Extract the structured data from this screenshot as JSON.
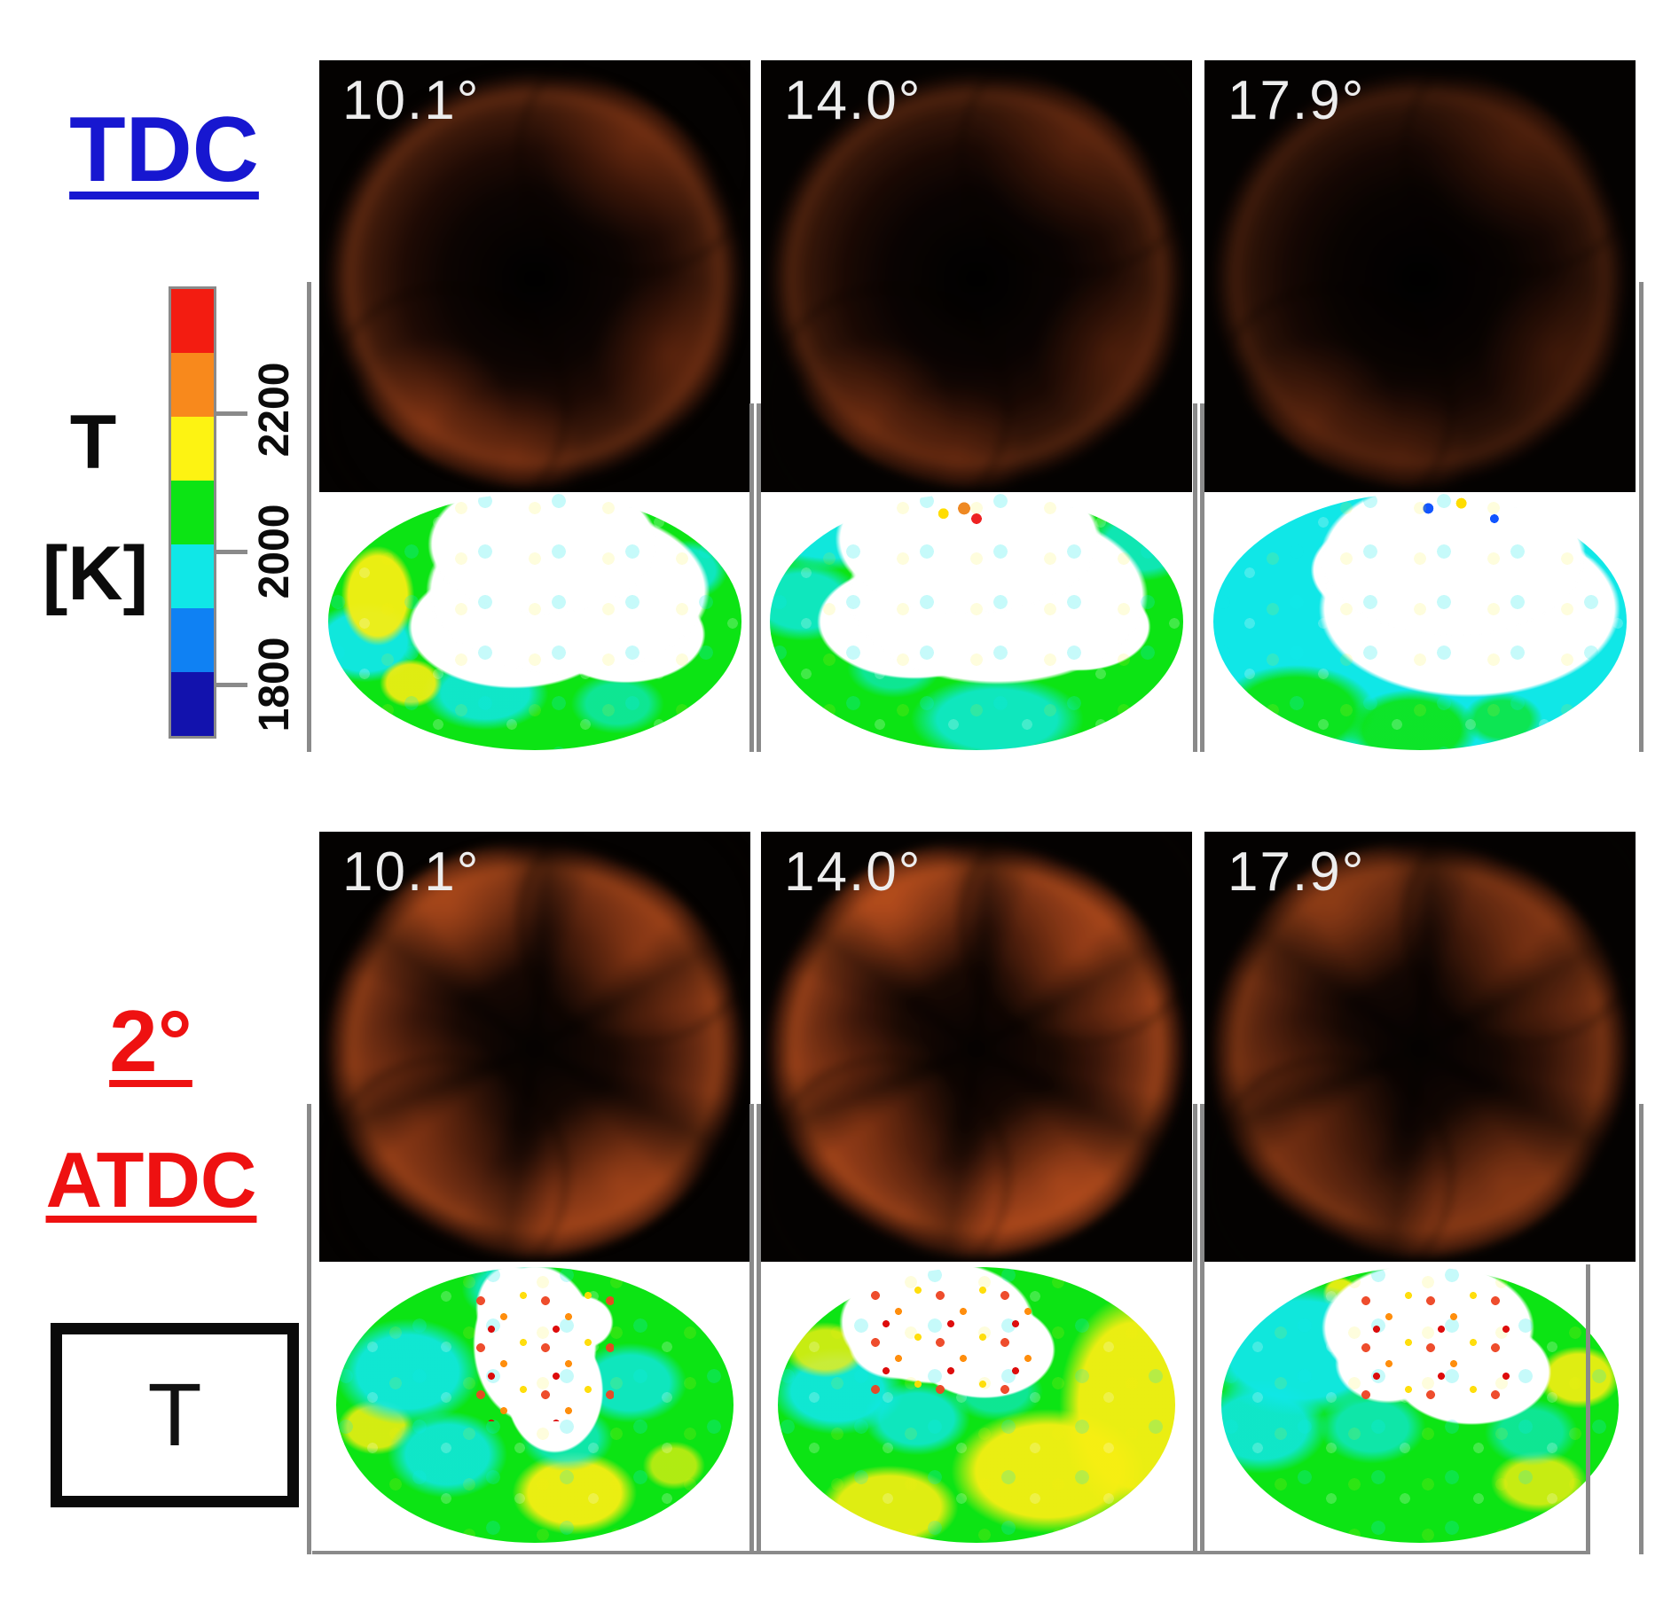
{
  "figure": {
    "background": "#ffffff",
    "colorbar": {
      "label_line1": "T",
      "label_line2": "[K]",
      "ticks": [
        "2200",
        "2000",
        "1800"
      ],
      "segment_colors_top_to_bottom": [
        "#f31c11",
        "#f8891c",
        "#fdf312",
        "#0ce414",
        "#10e7e7",
        "#0f81f3",
        "#1212ad"
      ],
      "frame_color": "#8a8a8a"
    },
    "sections": [
      {
        "title": "TDC",
        "title_color": "#1717d0",
        "angle_labels": [
          "10.1°",
          "14.0°",
          "17.9°"
        ]
      },
      {
        "title_line1": "2°",
        "title_line2": "ATDC",
        "title_color": "#ee1111",
        "angle_labels": [
          "10.1°",
          "14.0°",
          "17.9°"
        ]
      }
    ],
    "legend_box_label": "T"
  }
}
